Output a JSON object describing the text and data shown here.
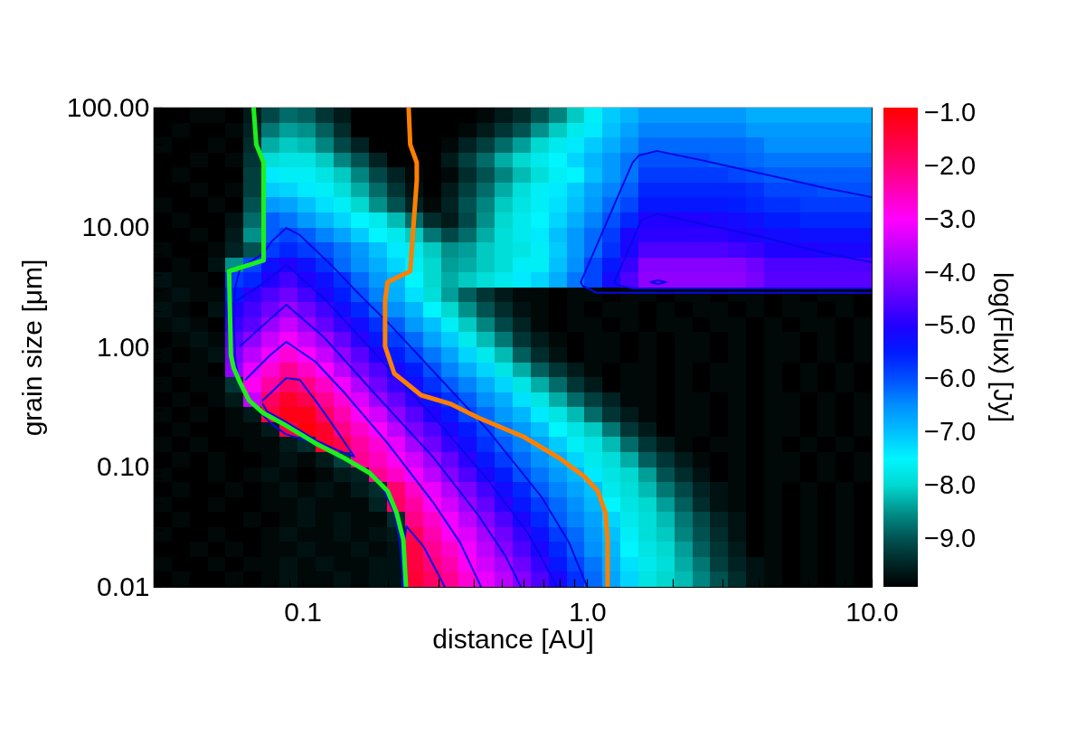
{
  "chart_data": {
    "type": "heatmap",
    "xlabel": "distance [AU]",
    "ylabel": "grain size [μm]",
    "clabel": "log(Flux) [Jy]",
    "log": "xy",
    "xlim": [
      0.03,
      10
    ],
    "ylim": [
      0.01,
      100
    ],
    "xticks": [
      {
        "value": 0.04,
        "label": null
      },
      {
        "value": 0.05,
        "label": null
      },
      {
        "value": 0.06,
        "label": null
      },
      {
        "value": 0.07,
        "label": null
      },
      {
        "value": 0.08,
        "label": null
      },
      {
        "value": 0.09,
        "label": null
      },
      0.1,
      {
        "value": 0.2,
        "label": null
      },
      {
        "value": 0.3,
        "label": null
      },
      {
        "value": 0.4,
        "label": null
      },
      {
        "value": 0.5,
        "label": null
      },
      {
        "value": 0.6,
        "label": null
      },
      {
        "value": 0.7,
        "label": null
      },
      {
        "value": 0.8,
        "label": null
      },
      {
        "value": 0.9,
        "label": null
      },
      {
        "value": 1,
        "label": "1.0"
      },
      {
        "value": 2,
        "label": null
      },
      {
        "value": 3,
        "label": null
      },
      {
        "value": 4,
        "label": null
      },
      {
        "value": 5,
        "label": null
      },
      {
        "value": 6,
        "label": null
      },
      {
        "value": 7,
        "label": null
      },
      {
        "value": 8,
        "label": null
      },
      {
        "value": 9,
        "label": null
      },
      {
        "value": 10,
        "label": "10.0"
      }
    ],
    "yticks": [
      0.01,
      {
        "value": 0.02,
        "label": null
      },
      {
        "value": 0.03,
        "label": null
      },
      {
        "value": 0.04,
        "label": null
      },
      {
        "value": 0.05,
        "label": null
      },
      {
        "value": 0.06,
        "label": null
      },
      {
        "value": 0.07,
        "label": null
      },
      {
        "value": 0.08,
        "label": null
      },
      {
        "value": 0.09,
        "label": null
      },
      {
        "value": 0.1,
        "label": "0.10"
      },
      {
        "value": 0.2,
        "label": null
      },
      {
        "value": 0.3,
        "label": null
      },
      {
        "value": 0.4,
        "label": null
      },
      {
        "value": 0.5,
        "label": null
      },
      {
        "value": 0.6,
        "label": null
      },
      {
        "value": 0.7,
        "label": null
      },
      {
        "value": 0.8,
        "label": null
      },
      {
        "value": 0.9,
        "label": null
      },
      {
        "value": 1,
        "label": "1.00"
      },
      {
        "value": 2,
        "label": null
      },
      {
        "value": 3,
        "label": null
      },
      {
        "value": 4,
        "label": null
      },
      {
        "value": 5,
        "label": null
      },
      {
        "value": 6,
        "label": null
      },
      {
        "value": 7,
        "label": null
      },
      {
        "value": 8,
        "label": null
      },
      {
        "value": 9,
        "label": null
      },
      {
        "value": 10,
        "label": "10.00"
      },
      {
        "value": 20,
        "label": null
      },
      {
        "value": 30,
        "label": null
      },
      {
        "value": 40,
        "label": null
      },
      {
        "value": 50,
        "label": null
      },
      {
        "value": 60,
        "label": null
      },
      {
        "value": 70,
        "label": null
      },
      {
        "value": 80,
        "label": null
      },
      {
        "value": 90,
        "label": null
      },
      {
        "value": 100,
        "label": "100.00"
      }
    ],
    "clim": [
      -9.9,
      -0.9
    ],
    "cticks": [
      {
        "value": -1,
        "label": "−1.0"
      },
      {
        "value": -2,
        "label": "−2.0"
      },
      {
        "value": -3,
        "label": "−3.0"
      },
      {
        "value": -4,
        "label": "−4.0"
      },
      {
        "value": -5,
        "label": "−5.0"
      },
      {
        "value": -6,
        "label": "−6.0"
      },
      {
        "value": -7,
        "label": "−7.0"
      },
      {
        "value": -8,
        "label": "−8.0"
      },
      {
        "value": -9,
        "label": "−9.0"
      }
    ],
    "cells": [
      [
        -9.9,
        -9.9,
        -9.8,
        -9.8,
        -9.9,
        -9.6,
        -9.1,
        -8.8,
        -8.9,
        -9.3,
        -9.6,
        -9.9,
        -9.9,
        -9.9,
        -9.9,
        -9.9,
        -9.9,
        -9.9,
        -9.8,
        -9.6,
        -9.4,
        -9.0,
        -8.6,
        -8.1,
        -7.6,
        -7.1,
        -6.9,
        -6.6,
        -6.6,
        -6.6,
        -6.6,
        -6.6,
        -6.6,
        -6.8,
        -6.8,
        -6.8,
        -6.8,
        -6.8,
        -6.8,
        -6.8
      ],
      [
        -9.9,
        -9.8,
        -9.9,
        -9.9,
        -9.8,
        -9.5,
        -8.7,
        -8.4,
        -8.5,
        -8.9,
        -9.4,
        -9.9,
        -9.9,
        -9.9,
        -9.9,
        -9.9,
        -9.9,
        -9.8,
        -9.6,
        -9.3,
        -9.0,
        -8.5,
        -8.1,
        -7.7,
        -7.4,
        -7.0,
        -6.7,
        -6.4,
        -6.4,
        -6.4,
        -6.4,
        -6.4,
        -6.4,
        -6.6,
        -6.6,
        -6.6,
        -6.6,
        -6.6,
        -6.6,
        -6.6
      ],
      [
        -9.8,
        -9.9,
        -9.9,
        -9.8,
        -9.9,
        -9.4,
        -8.3,
        -8.1,
        -8.2,
        -8.6,
        -9.1,
        -9.5,
        -9.9,
        -9.9,
        -9.9,
        -9.9,
        -9.8,
        -9.5,
        -9.2,
        -8.8,
        -8.4,
        -8.0,
        -7.7,
        -7.4,
        -7.1,
        -6.8,
        -6.5,
        -6.2,
        -6.2,
        -6.2,
        -6.2,
        -6.2,
        -6.2,
        -6.3,
        -6.5,
        -6.5,
        -6.5,
        -6.5,
        -6.5,
        -6.5
      ],
      [
        -9.9,
        -9.9,
        -9.8,
        -9.9,
        -9.8,
        -9.3,
        -7.9,
        -7.8,
        -7.8,
        -8.1,
        -8.6,
        -9.0,
        -9.5,
        -9.9,
        -9.9,
        -9.9,
        -9.6,
        -9.2,
        -8.8,
        -8.3,
        -8.0,
        -7.7,
        -7.5,
        -7.2,
        -6.9,
        -6.6,
        -6.3,
        -6.0,
        -6.0,
        -6.0,
        -6.0,
        -6.1,
        -6.1,
        -6.2,
        -6.3,
        -6.3,
        -6.3,
        -6.3,
        -6.3,
        -6.3
      ],
      [
        -9.9,
        -9.8,
        -9.9,
        -9.9,
        -9.9,
        -9.2,
        -7.4,
        -7.6,
        -7.6,
        -7.8,
        -8.1,
        -8.6,
        -9.1,
        -9.5,
        -9.8,
        -9.9,
        -9.8,
        -9.4,
        -9.0,
        -8.6,
        -8.2,
        -7.9,
        -7.6,
        -7.5,
        -7.0,
        -6.6,
        -6.3,
        -5.8,
        -5.8,
        -5.8,
        -5.8,
        -5.8,
        -5.9,
        -6.0,
        -6.1,
        -6.1,
        -6.1,
        -6.1,
        -6.1,
        -6.1
      ],
      [
        -9.9,
        -9.9,
        -9.8,
        -9.9,
        -9.8,
        -9.2,
        -7.1,
        -7.2,
        -7.4,
        -7.6,
        -7.9,
        -8.3,
        -8.8,
        -9.3,
        -9.7,
        -9.9,
        -9.6,
        -9.2,
        -8.8,
        -8.3,
        -7.9,
        -7.6,
        -7.4,
        -7.1,
        -6.7,
        -6.4,
        -6.1,
        -5.6,
        -5.6,
        -5.6,
        -5.6,
        -5.6,
        -5.6,
        -5.7,
        -5.9,
        -5.9,
        -5.9,
        -6.0,
        -6.0,
        -6.0
      ],
      [
        -9.8,
        -9.9,
        -9.9,
        -9.8,
        -9.9,
        -9.0,
        -6.6,
        -6.7,
        -7.0,
        -7.3,
        -7.6,
        -8.0,
        -8.5,
        -9.0,
        -9.5,
        -9.8,
        -9.5,
        -9.0,
        -8.6,
        -8.1,
        -7.8,
        -7.6,
        -7.3,
        -7.0,
        -6.6,
        -6.2,
        -5.9,
        -5.4,
        -5.4,
        -5.4,
        -5.4,
        -5.4,
        -5.5,
        -5.6,
        -5.7,
        -5.7,
        -5.8,
        -5.8,
        -5.8,
        -5.8
      ],
      [
        -9.9,
        -9.8,
        -9.9,
        -9.9,
        -9.7,
        -8.8,
        -6.1,
        -6.3,
        -6.6,
        -6.9,
        -7.2,
        -7.5,
        -7.7,
        -8.2,
        -8.8,
        -9.4,
        -9.6,
        -9.1,
        -8.5,
        -8.0,
        -7.7,
        -7.5,
        -7.2,
        -6.8,
        -6.4,
        -6.0,
        -5.6,
        -5.0,
        -5.0,
        -5.0,
        -5.0,
        -5.1,
        -5.2,
        -5.3,
        -5.5,
        -5.5,
        -5.6,
        -5.6,
        -5.6,
        -5.6
      ],
      [
        -9.9,
        -9.9,
        -9.8,
        -9.9,
        -9.6,
        -8.5,
        -6.1,
        -5.9,
        -6.1,
        -6.4,
        -6.7,
        -7.1,
        -7.5,
        -7.7,
        -8.1,
        -8.7,
        -9.1,
        -8.8,
        -8.3,
        -7.9,
        -7.7,
        -7.4,
        -7.0,
        -6.6,
        -6.2,
        -5.8,
        -5.1,
        -4.9,
        -4.9,
        -4.9,
        -4.9,
        -4.9,
        -5.0,
        -5.1,
        -5.2,
        -5.2,
        -5.3,
        -5.3,
        -5.3,
        -5.3
      ],
      [
        -9.8,
        -9.9,
        -9.9,
        -9.8,
        -9.5,
        -9.0,
        -5.8,
        -5.6,
        -5.8,
        -6.0,
        -6.3,
        -6.6,
        -7.0,
        -7.4,
        -7.7,
        -8.1,
        -8.5,
        -8.4,
        -8.1,
        -7.9,
        -7.8,
        -7.6,
        -7.1,
        -6.6,
        -6.2,
        -5.7,
        -5.1,
        -4.6,
        -4.6,
        -4.6,
        -4.6,
        -4.6,
        -4.7,
        -4.8,
        -5.0,
        -5.0,
        -5.0,
        -5.1,
        -5.1,
        -5.1
      ],
      [
        -9.9,
        -9.8,
        -9.9,
        -9.7,
        -8.5,
        -5.9,
        -5.3,
        -5.0,
        -5.3,
        -5.7,
        -6.2,
        -6.5,
        -6.8,
        -7.2,
        -7.6,
        -8.0,
        -8.4,
        -8.3,
        -8.1,
        -7.9,
        -7.6,
        -7.6,
        -7.0,
        -6.5,
        -5.9,
        -5.4,
        -4.8,
        -4.1,
        -4.1,
        -4.1,
        -4.1,
        -4.1,
        -4.1,
        -4.3,
        -4.6,
        -4.6,
        -4.6,
        -4.6,
        -4.6,
        -4.6
      ],
      [
        -9.7,
        -9.8,
        -9.8,
        -9.9,
        -5.8,
        -5.6,
        -5.0,
        -4.7,
        -5.0,
        -5.3,
        -5.7,
        -6.2,
        -6.6,
        -6.9,
        -7.5,
        -8.0,
        -8.3,
        -8.1,
        -7.9,
        -7.7,
        -7.4,
        -7.2,
        -6.8,
        -6.3,
        -5.9,
        -5.2,
        -4.6,
        -4.0,
        -4.0,
        -4.0,
        -4.0,
        -4.0,
        -4.0,
        -4.2,
        -4.5,
        -4.5,
        -4.5,
        -4.5,
        -4.5,
        -4.5
      ],
      [
        -9.8,
        -9.7,
        -9.8,
        -9.8,
        -5.5,
        -4.9,
        -4.6,
        -4.3,
        -4.7,
        -5.1,
        -5.5,
        -6.0,
        -6.4,
        -6.8,
        -7.3,
        -7.9,
        -8.4,
        -8.9,
        -9.3,
        -9.6,
        -9.8,
        -9.8,
        -9.9,
        -9.8,
        -9.8,
        -9.9,
        -9.8,
        -9.8,
        -9.9,
        -9.8,
        -9.8,
        -9.9,
        -9.8,
        -9.8,
        -9.9,
        -9.8,
        -9.9,
        -9.8,
        -9.8,
        -9.9
      ],
      [
        -9.7,
        -9.8,
        -9.9,
        -9.7,
        -5.0,
        -4.7,
        -4.3,
        -3.9,
        -4.3,
        -4.7,
        -5.2,
        -5.6,
        -6.1,
        -6.5,
        -6.9,
        -7.5,
        -8.0,
        -8.5,
        -9.0,
        -9.4,
        -9.7,
        -9.8,
        -9.9,
        -9.8,
        -9.9,
        -9.8,
        -9.8,
        -9.9,
        -9.8,
        -9.9,
        -9.8,
        -9.8,
        -9.9,
        -9.8,
        -9.9,
        -9.8,
        -9.8,
        -9.9,
        -9.8,
        -9.9
      ],
      [
        -9.8,
        -9.7,
        -9.8,
        -9.9,
        -4.8,
        -4.5,
        -3.9,
        -3.5,
        -3.9,
        -4.4,
        -4.8,
        -5.2,
        -5.7,
        -6.1,
        -6.6,
        -7.0,
        -7.6,
        -8.1,
        -8.6,
        -9.1,
        -9.5,
        -9.8,
        -9.9,
        -9.8,
        -9.8,
        -9.9,
        -9.8,
        -9.9,
        -9.8,
        -9.8,
        -9.9,
        -9.8,
        -9.8,
        -9.9,
        -9.8,
        -9.9,
        -9.8,
        -9.8,
        -9.9,
        -9.8
      ],
      [
        -9.9,
        -9.8,
        -9.7,
        -9.8,
        -4.5,
        -4.0,
        -3.5,
        -3.1,
        -3.5,
        -3.9,
        -4.4,
        -4.9,
        -5.4,
        -5.8,
        -6.2,
        -6.7,
        -7.1,
        -7.7,
        -8.2,
        -8.7,
        -9.3,
        -9.6,
        -9.8,
        -9.9,
        -9.8,
        -9.8,
        -9.9,
        -9.8,
        -9.9,
        -9.8,
        -9.8,
        -9.9,
        -9.8,
        -9.9,
        -9.8,
        -9.8,
        -9.9,
        -9.8,
        -9.9,
        -9.8
      ],
      [
        -9.8,
        -9.9,
        -9.8,
        -9.7,
        -4.2,
        -3.6,
        -3.1,
        -2.7,
        -3.0,
        -3.5,
        -4.0,
        -4.5,
        -5.0,
        -5.5,
        -5.9,
        -6.3,
        -6.7,
        -7.2,
        -7.7,
        -8.2,
        -8.9,
        -9.4,
        -9.7,
        -9.9,
        -9.8,
        -9.8,
        -9.9,
        -9.8,
        -9.9,
        -9.8,
        -9.8,
        -9.9,
        -9.8,
        -9.9,
        -9.8,
        -9.8,
        -9.9,
        -9.8,
        -9.9,
        -9.8
      ],
      [
        -9.9,
        -9.8,
        -9.8,
        -9.9,
        -4.0,
        -3.2,
        -2.7,
        -2.2,
        -2.6,
        -3.0,
        -3.6,
        -4.2,
        -4.6,
        -5.1,
        -5.5,
        -6.0,
        -6.4,
        -6.8,
        -7.2,
        -7.8,
        -8.3,
        -8.9,
        -9.3,
        -9.6,
        -9.8,
        -9.9,
        -9.8,
        -9.8,
        -9.9,
        -9.8,
        -9.9,
        -9.8,
        -9.8,
        -9.9,
        -9.8,
        -9.9,
        -9.8,
        -9.9,
        -9.8,
        -9.9
      ],
      [
        -9.8,
        -9.9,
        -9.8,
        -9.8,
        -9.3,
        -2.9,
        -2.3,
        -1.9,
        -2.1,
        -2.6,
        -3.1,
        -3.7,
        -4.3,
        -4.8,
        -5.2,
        -5.7,
        -6.1,
        -6.4,
        -6.8,
        -7.2,
        -7.8,
        -8.3,
        -8.8,
        -9.3,
        -9.6,
        -9.9,
        -9.8,
        -9.8,
        -9.9,
        -9.8,
        -9.9,
        -9.8,
        -9.8,
        -9.9,
        -9.8,
        -9.9,
        -9.8,
        -9.9,
        -9.8,
        -9.9
      ],
      [
        -9.9,
        -9.8,
        -9.9,
        -9.8,
        -9.6,
        -3.5,
        -1.8,
        -1.3,
        -1.6,
        -2.2,
        -2.7,
        -3.3,
        -3.9,
        -4.4,
        -4.9,
        -5.3,
        -5.7,
        -6.1,
        -6.5,
        -6.8,
        -7.3,
        -7.8,
        -8.3,
        -8.8,
        -9.2,
        -9.5,
        -9.8,
        -9.8,
        -9.9,
        -9.8,
        -9.8,
        -9.9,
        -9.8,
        -9.9,
        -9.8,
        -9.8,
        -9.9,
        -9.8,
        -9.9,
        -9.8
      ],
      [
        -9.8,
        -9.9,
        -9.8,
        -9.9,
        -9.8,
        -9.6,
        -1.5,
        -1.1,
        -1.1,
        -1.8,
        -2.4,
        -2.9,
        -3.4,
        -4.0,
        -4.5,
        -5.0,
        -5.4,
        -5.9,
        -6.2,
        -6.6,
        -6.9,
        -7.4,
        -7.8,
        -8.2,
        -8.8,
        -9.3,
        -9.6,
        -9.8,
        -9.9,
        -9.8,
        -9.8,
        -9.9,
        -9.8,
        -9.9,
        -9.8,
        -9.8,
        -9.9,
        -9.8,
        -9.9,
        -9.8
      ],
      [
        -9.9,
        -9.8,
        -9.9,
        -9.9,
        -9.8,
        -9.8,
        -9.6,
        -1.5,
        -1.0,
        -1.3,
        -2.1,
        -2.6,
        -3.0,
        -3.6,
        -4.2,
        -4.6,
        -5.1,
        -5.5,
        -5.9,
        -6.3,
        -6.6,
        -7.0,
        -7.5,
        -7.8,
        -8.1,
        -8.7,
        -9.3,
        -9.6,
        -9.9,
        -9.8,
        -9.8,
        -9.9,
        -9.8,
        -9.9,
        -9.8,
        -9.8,
        -9.9,
        -9.8,
        -9.9,
        -9.8
      ],
      [
        -9.8,
        -9.9,
        -9.8,
        -9.9,
        -9.9,
        -9.8,
        -9.8,
        -9.6,
        -9.4,
        -1.3,
        -1.6,
        -2.3,
        -2.7,
        -3.2,
        -3.8,
        -4.3,
        -4.8,
        -5.2,
        -5.7,
        -6.1,
        -6.4,
        -6.7,
        -7.1,
        -7.6,
        -7.8,
        -8.2,
        -8.8,
        -9.3,
        -9.6,
        -9.8,
        -9.9,
        -9.8,
        -9.8,
        -9.9,
        -9.8,
        -9.9,
        -9.8,
        -9.9,
        -9.8,
        -9.9
      ],
      [
        -9.9,
        -9.8,
        -9.9,
        -9.8,
        -9.9,
        -9.9,
        -9.8,
        -9.7,
        -9.8,
        -9.6,
        -9.2,
        -2.2,
        -2.5,
        -2.9,
        -3.4,
        -3.9,
        -4.4,
        -4.9,
        -5.4,
        -5.8,
        -6.2,
        -6.5,
        -6.8,
        -7.2,
        -7.7,
        -7.9,
        -8.3,
        -8.9,
        -9.3,
        -9.6,
        -9.8,
        -9.9,
        -9.8,
        -9.9,
        -9.8,
        -9.8,
        -9.9,
        -9.8,
        -9.9,
        -9.8
      ],
      [
        -9.8,
        -9.9,
        -9.9,
        -9.8,
        -9.9,
        -9.8,
        -9.7,
        -9.8,
        -9.9,
        -9.8,
        -9.6,
        -9.5,
        -2.2,
        -2.6,
        -3.1,
        -3.6,
        -4.1,
        -4.6,
        -5.1,
        -5.5,
        -6.0,
        -6.3,
        -6.6,
        -6.9,
        -7.4,
        -7.8,
        -8.0,
        -8.4,
        -9.0,
        -9.4,
        -9.7,
        -9.9,
        -9.8,
        -9.9,
        -9.8,
        -9.8,
        -9.9,
        -9.8,
        -9.9,
        -9.8
      ],
      [
        -9.9,
        -9.8,
        -9.9,
        -9.9,
        -9.8,
        -9.9,
        -9.8,
        -9.7,
        -9.8,
        -9.7,
        -9.8,
        -9.6,
        -9.4,
        -1.9,
        -2.6,
        -3.2,
        -3.7,
        -4.2,
        -4.7,
        -5.2,
        -5.6,
        -6.1,
        -6.4,
        -6.7,
        -7.0,
        -7.7,
        -7.9,
        -8.2,
        -8.7,
        -9.1,
        -9.5,
        -9.7,
        -9.8,
        -9.9,
        -9.8,
        -9.9,
        -9.8,
        -9.9,
        -9.8,
        -9.9
      ],
      [
        -9.8,
        -9.9,
        -9.9,
        -9.8,
        -9.9,
        -9.9,
        -9.8,
        -9.8,
        -9.7,
        -9.8,
        -9.8,
        -9.8,
        -9.5,
        -1.8,
        -2.3,
        -2.9,
        -3.4,
        -3.9,
        -4.4,
        -4.9,
        -5.4,
        -5.8,
        -6.2,
        -6.5,
        -6.9,
        -7.5,
        -7.8,
        -8.0,
        -8.4,
        -8.9,
        -9.4,
        -9.7,
        -9.8,
        -9.9,
        -9.8,
        -9.9,
        -9.8,
        -9.9,
        -9.8,
        -9.9
      ],
      [
        -9.9,
        -9.8,
        -9.9,
        -9.9,
        -9.9,
        -9.8,
        -9.9,
        -9.8,
        -9.7,
        -9.8,
        -9.7,
        -9.8,
        -9.8,
        -9.4,
        -2.1,
        -2.6,
        -3.1,
        -3.6,
        -4.1,
        -4.6,
        -5.1,
        -5.6,
        -6.1,
        -6.4,
        -6.7,
        -7.2,
        -7.7,
        -7.9,
        -8.2,
        -8.7,
        -9.1,
        -9.5,
        -9.7,
        -9.9,
        -9.8,
        -9.9,
        -9.8,
        -9.9,
        -9.8,
        -9.9
      ],
      [
        -9.8,
        -9.9,
        -9.9,
        -9.8,
        -9.9,
        -9.9,
        -9.8,
        -9.7,
        -9.8,
        -9.8,
        -9.7,
        -9.8,
        -9.7,
        -9.6,
        -1.7,
        -2.4,
        -2.9,
        -3.3,
        -3.8,
        -4.3,
        -4.8,
        -5.3,
        -5.8,
        -6.2,
        -6.6,
        -7.0,
        -7.6,
        -7.9,
        -8.1,
        -8.6,
        -9.0,
        -9.4,
        -9.7,
        -9.9,
        -9.8,
        -9.9,
        -9.8,
        -9.9,
        -9.8,
        -9.9
      ],
      [
        -9.9,
        -9.9,
        -9.8,
        -9.9,
        -9.8,
        -9.9,
        -9.8,
        -9.8,
        -9.7,
        -9.8,
        -9.8,
        -9.7,
        -9.8,
        -9.7,
        -1.5,
        -2.2,
        -2.6,
        -3.1,
        -3.6,
        -4.1,
        -4.6,
        -5.1,
        -5.6,
        -6.1,
        -6.5,
        -6.9,
        -7.5,
        -7.8,
        -8.0,
        -8.4,
        -8.9,
        -9.3,
        -9.6,
        -9.9,
        -9.8,
        -9.9,
        -9.8,
        -9.9,
        -9.8,
        -9.9
      ],
      [
        -9.8,
        -9.9,
        -9.9,
        -9.8,
        -9.9,
        -9.8,
        -9.8,
        -9.7,
        -9.8,
        -9.7,
        -9.8,
        -9.8,
        -9.7,
        -9.7,
        -1.5,
        -2.0,
        -2.4,
        -2.9,
        -3.4,
        -3.8,
        -4.3,
        -4.8,
        -5.4,
        -5.9,
        -6.3,
        -6.8,
        -7.3,
        -7.7,
        -7.9,
        -8.3,
        -8.7,
        -9.2,
        -9.5,
        -9.7,
        -9.8,
        -9.9,
        -9.8,
        -9.9,
        -9.8,
        -9.9
      ],
      [
        -9.9,
        -9.8,
        -9.9,
        -9.9,
        -9.8,
        -9.9,
        -9.8,
        -9.7,
        -9.8,
        -9.8,
        -9.7,
        -9.8,
        -9.7,
        -9.7,
        -1.4,
        -1.8,
        -2.2,
        -2.7,
        -3.2,
        -3.6,
        -4.1,
        -4.6,
        -5.1,
        -5.7,
        -6.2,
        -6.7,
        -7.2,
        -7.8,
        -8.0,
        -8.2,
        -8.6,
        -9.0,
        -9.4,
        -9.7,
        -9.8,
        -9.9,
        -9.8,
        -9.9,
        -9.8,
        -9.9
      ]
    ],
    "series": [
      {
        "type": "line",
        "color": "#1cf01c",
        "x": [
          0.0673,
          0.0688,
          0.073,
          0.073,
          0.0552,
          0.056,
          0.0573,
          0.0603,
          0.0649,
          0.073,
          0.087,
          0.111,
          0.141,
          0.172,
          0.199,
          0.214,
          0.226,
          0.231
        ],
        "values": [
          100,
          49.1,
          34.7,
          5.31,
          4.31,
          0.855,
          0.67,
          0.508,
          0.359,
          0.281,
          0.224,
          0.158,
          0.118,
          0.0893,
          0.0631,
          0.0416,
          0.0247,
          0.01
        ]
      },
      {
        "type": "line",
        "color": "#ff8000",
        "x": [
          0.236,
          0.239,
          0.252,
          0.252,
          0.239,
          0.199,
          0.195,
          0.195,
          0.21,
          0.261,
          0.333,
          0.415,
          0.598,
          0.802,
          0.978,
          1.09,
          1.16,
          1.18,
          1.18
        ],
        "values": [
          100,
          49.1,
          34.7,
          24.5,
          4.31,
          3.49,
          2.43,
          1.02,
          0.604,
          0.398,
          0.335,
          0.258,
          0.179,
          0.118,
          0.0834,
          0.0631,
          0.0416,
          0.0247,
          0.01
        ]
      },
      {
        "type": "line",
        "color": "#0808e8",
        "x": [
          0.227,
          0.219,
          0.21,
          0.185,
          0.16,
          0.141,
          0.111,
          0.087,
          0.0768,
          0.0649,
          0.0603,
          0.0581,
          0.0573,
          0.0581,
          0.0603,
          0.073,
          0.0779,
          0.0877,
          0.0978,
          0.126,
          0.16,
          0.204,
          0.287,
          0.446,
          0.693,
          0.864,
          1.0
        ],
        "values": [
          0.01,
          0.0247,
          0.0416,
          0.0791,
          0.0991,
          0.118,
          0.158,
          0.189,
          0.236,
          0.359,
          0.474,
          0.757,
          1.81,
          3.2,
          4.54,
          6.09,
          7.64,
          9.91,
          8.63,
          4.86,
          2.69,
          1.52,
          0.637,
          0.206,
          0.0559,
          0.0234,
          0.01
        ]
      },
      {
        "type": "line",
        "color": "#0808e8",
        "x": [
          0.0585,
          0.073,
          0.0877,
          0.119,
          0.185,
          0.287,
          0.446,
          0.621,
          0.785
        ],
        "values": [
          2.43,
          3.43,
          4.86,
          2.56,
          0.826,
          0.267,
          0.0791,
          0.0279,
          0.01
        ]
      },
      {
        "type": "line",
        "color": "#0808e8",
        "x": [
          0.0603,
          0.0768,
          0.0877,
          0.119,
          0.185,
          0.287,
          0.415,
          0.517,
          0.585
        ],
        "values": [
          1.02,
          1.71,
          2.26,
          1.21,
          0.378,
          0.122,
          0.0395,
          0.018,
          0.01
        ]
      },
      {
        "type": "line",
        "color": "#0808e8",
        "x": [
          0.063,
          0.0768,
          0.0877,
          0.111,
          0.141,
          0.199,
          0.287,
          0.358,
          0.424
        ],
        "values": [
          0.535,
          0.855,
          1.11,
          0.757,
          0.412,
          0.158,
          0.0512,
          0.0234,
          0.01
        ]
      },
      {
        "type": "line",
        "color": "#0808e8",
        "x": [
          0.0724,
          0.0877,
          0.0978,
          0.111,
          0.126,
          0.152,
          0.131,
          0.113,
          0.087,
          0.0751,
          0.0726
        ],
        "values": [
          0.359,
          0.554,
          0.535,
          0.359,
          0.236,
          0.122,
          0.14,
          0.164,
          0.24,
          0.29,
          0.335
        ]
      },
      {
        "type": "line",
        "color": "#0808e8",
        "x": [
          0.224,
          0.227,
          0.232,
          0.267,
          0.316
        ],
        "values": [
          0.01,
          0.0234,
          0.032,
          0.0215,
          0.01
        ]
      },
      {
        "type": "line",
        "color": "#0808e8",
        "x": [
          10,
          1.076,
          0.964,
          0.95,
          1.443,
          1.519,
          1.759,
          2.594,
          4.24,
          6.88,
          10
        ],
        "values": [
          2.85,
          2.85,
          3.26,
          3.49,
          34.6,
          39.8,
          43.4,
          35.9,
          27.6,
          21.3,
          17.9
        ]
      },
      {
        "type": "line",
        "color": "#0808e8",
        "x": [
          10,
          1.443,
          1.274,
          1.246,
          1.553,
          1.759,
          2.594,
          4.24,
          6.88,
          10
        ],
        "values": [
          3.1,
          3.1,
          3.32,
          3.49,
          11.6,
          12.9,
          10.6,
          8.19,
          6.09,
          5.12
        ]
      },
      {
        "type": "line",
        "color": "#0808e8",
        "x": [
          1.671,
          1.772,
          1.893,
          1.772,
          1.69
        ],
        "values": [
          3.49,
          3.62,
          3.49,
          3.38,
          3.46
        ]
      }
    ]
  }
}
